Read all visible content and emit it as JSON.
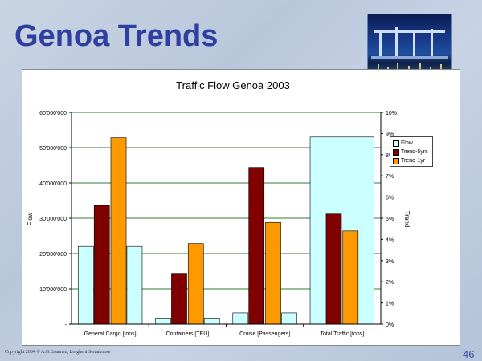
{
  "slide": {
    "title": "Genoa Trends",
    "footer": "Copyright 2004 © A.G.Ersamen, Lorgheni Semakoose",
    "page_number": "46"
  },
  "chart_data": {
    "type": "bar",
    "title": "Traffic Flow Genoa 2003",
    "ylabel": "Flow",
    "y2label": "Trend",
    "categories": [
      "General Cargo [tons]",
      "Containers [TEU]",
      "Cruise [Passengers]",
      "Total Traffic [tons]"
    ],
    "ylim": [
      0,
      60000000
    ],
    "y_ticks": [
      "-",
      "10'000'000",
      "20'000'000",
      "30'000'000",
      "40'000'000",
      "50'000'000",
      "60'000'000"
    ],
    "y2lim": [
      0,
      0.1
    ],
    "y2_ticks": [
      "0%",
      "1%",
      "2%",
      "3%",
      "4%",
      "5%",
      "6%",
      "7%",
      "8%",
      "9%",
      "10%"
    ],
    "grid": true,
    "legend_position": "right",
    "series": [
      {
        "name": "Flow",
        "axis": "left",
        "color": "#ccffff",
        "values": [
          22000000,
          1500000,
          3200000,
          53000000
        ]
      },
      {
        "name": "Trend-5yrs",
        "axis": "right",
        "color": "#800000",
        "values": [
          0.056,
          0.024,
          0.074,
          0.052
        ]
      },
      {
        "name": "Trend-1yr",
        "axis": "right",
        "color": "#ff9900",
        "values": [
          0.088,
          0.038,
          0.048,
          0.044
        ]
      }
    ]
  }
}
